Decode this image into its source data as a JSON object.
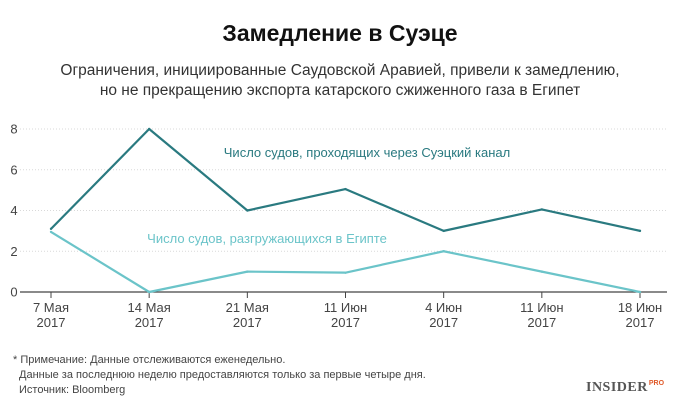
{
  "header": {
    "title": "Замедление в Суэце",
    "subtitle_line1": "Ограничения, инициированные Саудовской Аравией, привели к замедлению,",
    "subtitle_line2": "но не прекращению экспорта катарского сжиженного газа в Египет"
  },
  "chart_data": {
    "type": "line",
    "categories": [
      [
        "7 Мая",
        "2017"
      ],
      [
        "14 Мая",
        "2017"
      ],
      [
        "21 Мая",
        "2017"
      ],
      [
        "11 Июн",
        "2017"
      ],
      [
        "4 Июн",
        "2017"
      ],
      [
        "11 Июн",
        "2017"
      ],
      [
        "18 Июн",
        "2017"
      ]
    ],
    "ylim": [
      0,
      8
    ],
    "yticks": [
      0,
      2,
      4,
      6,
      8
    ],
    "grid": true,
    "series": [
      {
        "name": "Число судов, проходящих через Суэцкий канал",
        "color": "#2a7a80",
        "values": [
          3.1,
          8,
          4,
          5.05,
          3,
          4.05,
          3
        ]
      },
      {
        "name": "Число судов, разгружающихся в Египте",
        "color": "#6bc4c9",
        "values": [
          2.95,
          0,
          1,
          0.95,
          2,
          1,
          0
        ]
      }
    ]
  },
  "notes": {
    "line1": "* Примечание: Данные отслеживаются еженедельно.",
    "line2": "Данные за последнюю неделю предоставляются только за первые четыре дня.",
    "line3": "Источник: Bloomberg"
  },
  "logo": {
    "main": "INSIDER",
    "sup": "PRO",
    "accent": "#e05a2a"
  }
}
